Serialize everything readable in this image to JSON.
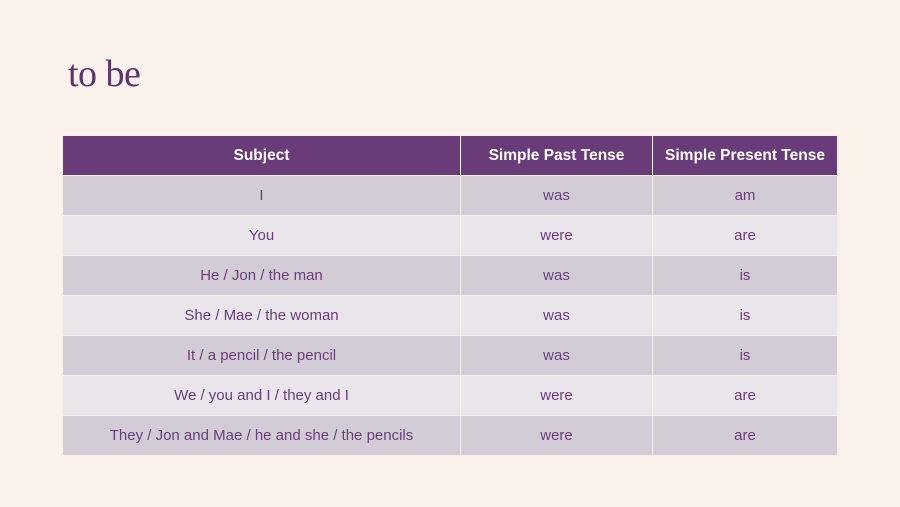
{
  "title": "to be",
  "table": {
    "headers": [
      "Subject",
      "Simple Past Tense",
      "Simple Present Tense"
    ],
    "rows": [
      [
        "I",
        "was",
        "am"
      ],
      [
        "You",
        "were",
        "are"
      ],
      [
        "He / Jon / the man",
        "was",
        "is"
      ],
      [
        "She / Mae / the woman",
        "was",
        "is"
      ],
      [
        "It / a pencil / the pencil",
        "was",
        "is"
      ],
      [
        "We / you and I / they and I",
        "were",
        "are"
      ],
      [
        "They / Jon and Mae / he and she / the pencils",
        "were",
        "are"
      ]
    ]
  },
  "colors": {
    "header": "#693b78",
    "row_dark": "#d3ccd6",
    "row_light": "#e9e5ea",
    "background": "#faf2ea",
    "text": "#6b3d7a"
  }
}
